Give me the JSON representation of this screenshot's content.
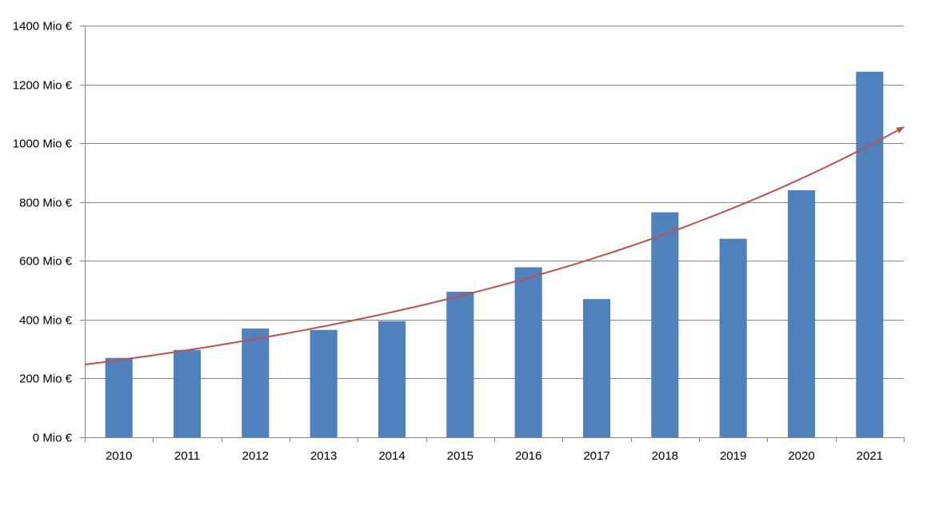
{
  "chart_data": {
    "type": "bar",
    "title": "",
    "xlabel": "",
    "ylabel": "",
    "categories": [
      "2010",
      "2011",
      "2012",
      "2013",
      "2014",
      "2015",
      "2016",
      "2017",
      "2018",
      "2019",
      "2020",
      "2021"
    ],
    "values": [
      270,
      297,
      370,
      365,
      395,
      495,
      578,
      470,
      765,
      675,
      840,
      1243
    ],
    "ylim": [
      0,
      1400
    ],
    "y_ticks": [
      0,
      200,
      400,
      600,
      800,
      1000,
      1200,
      1400
    ],
    "y_tick_labels": [
      "0 Mio €",
      "200 Mio €",
      "400 Mio €",
      "600 Mio €",
      "800 Mio €",
      "1000 Mio €",
      "1200 Mio €",
      "1400 Mio €"
    ],
    "grid": true,
    "legend": "none",
    "trendline": {
      "type": "exponential",
      "color": "#c0504d",
      "arrow": true,
      "start_value": 247,
      "end_value": 1055
    },
    "colors": {
      "bar": "#4f81bd",
      "grid": "#868686",
      "axis": "#868686"
    }
  }
}
